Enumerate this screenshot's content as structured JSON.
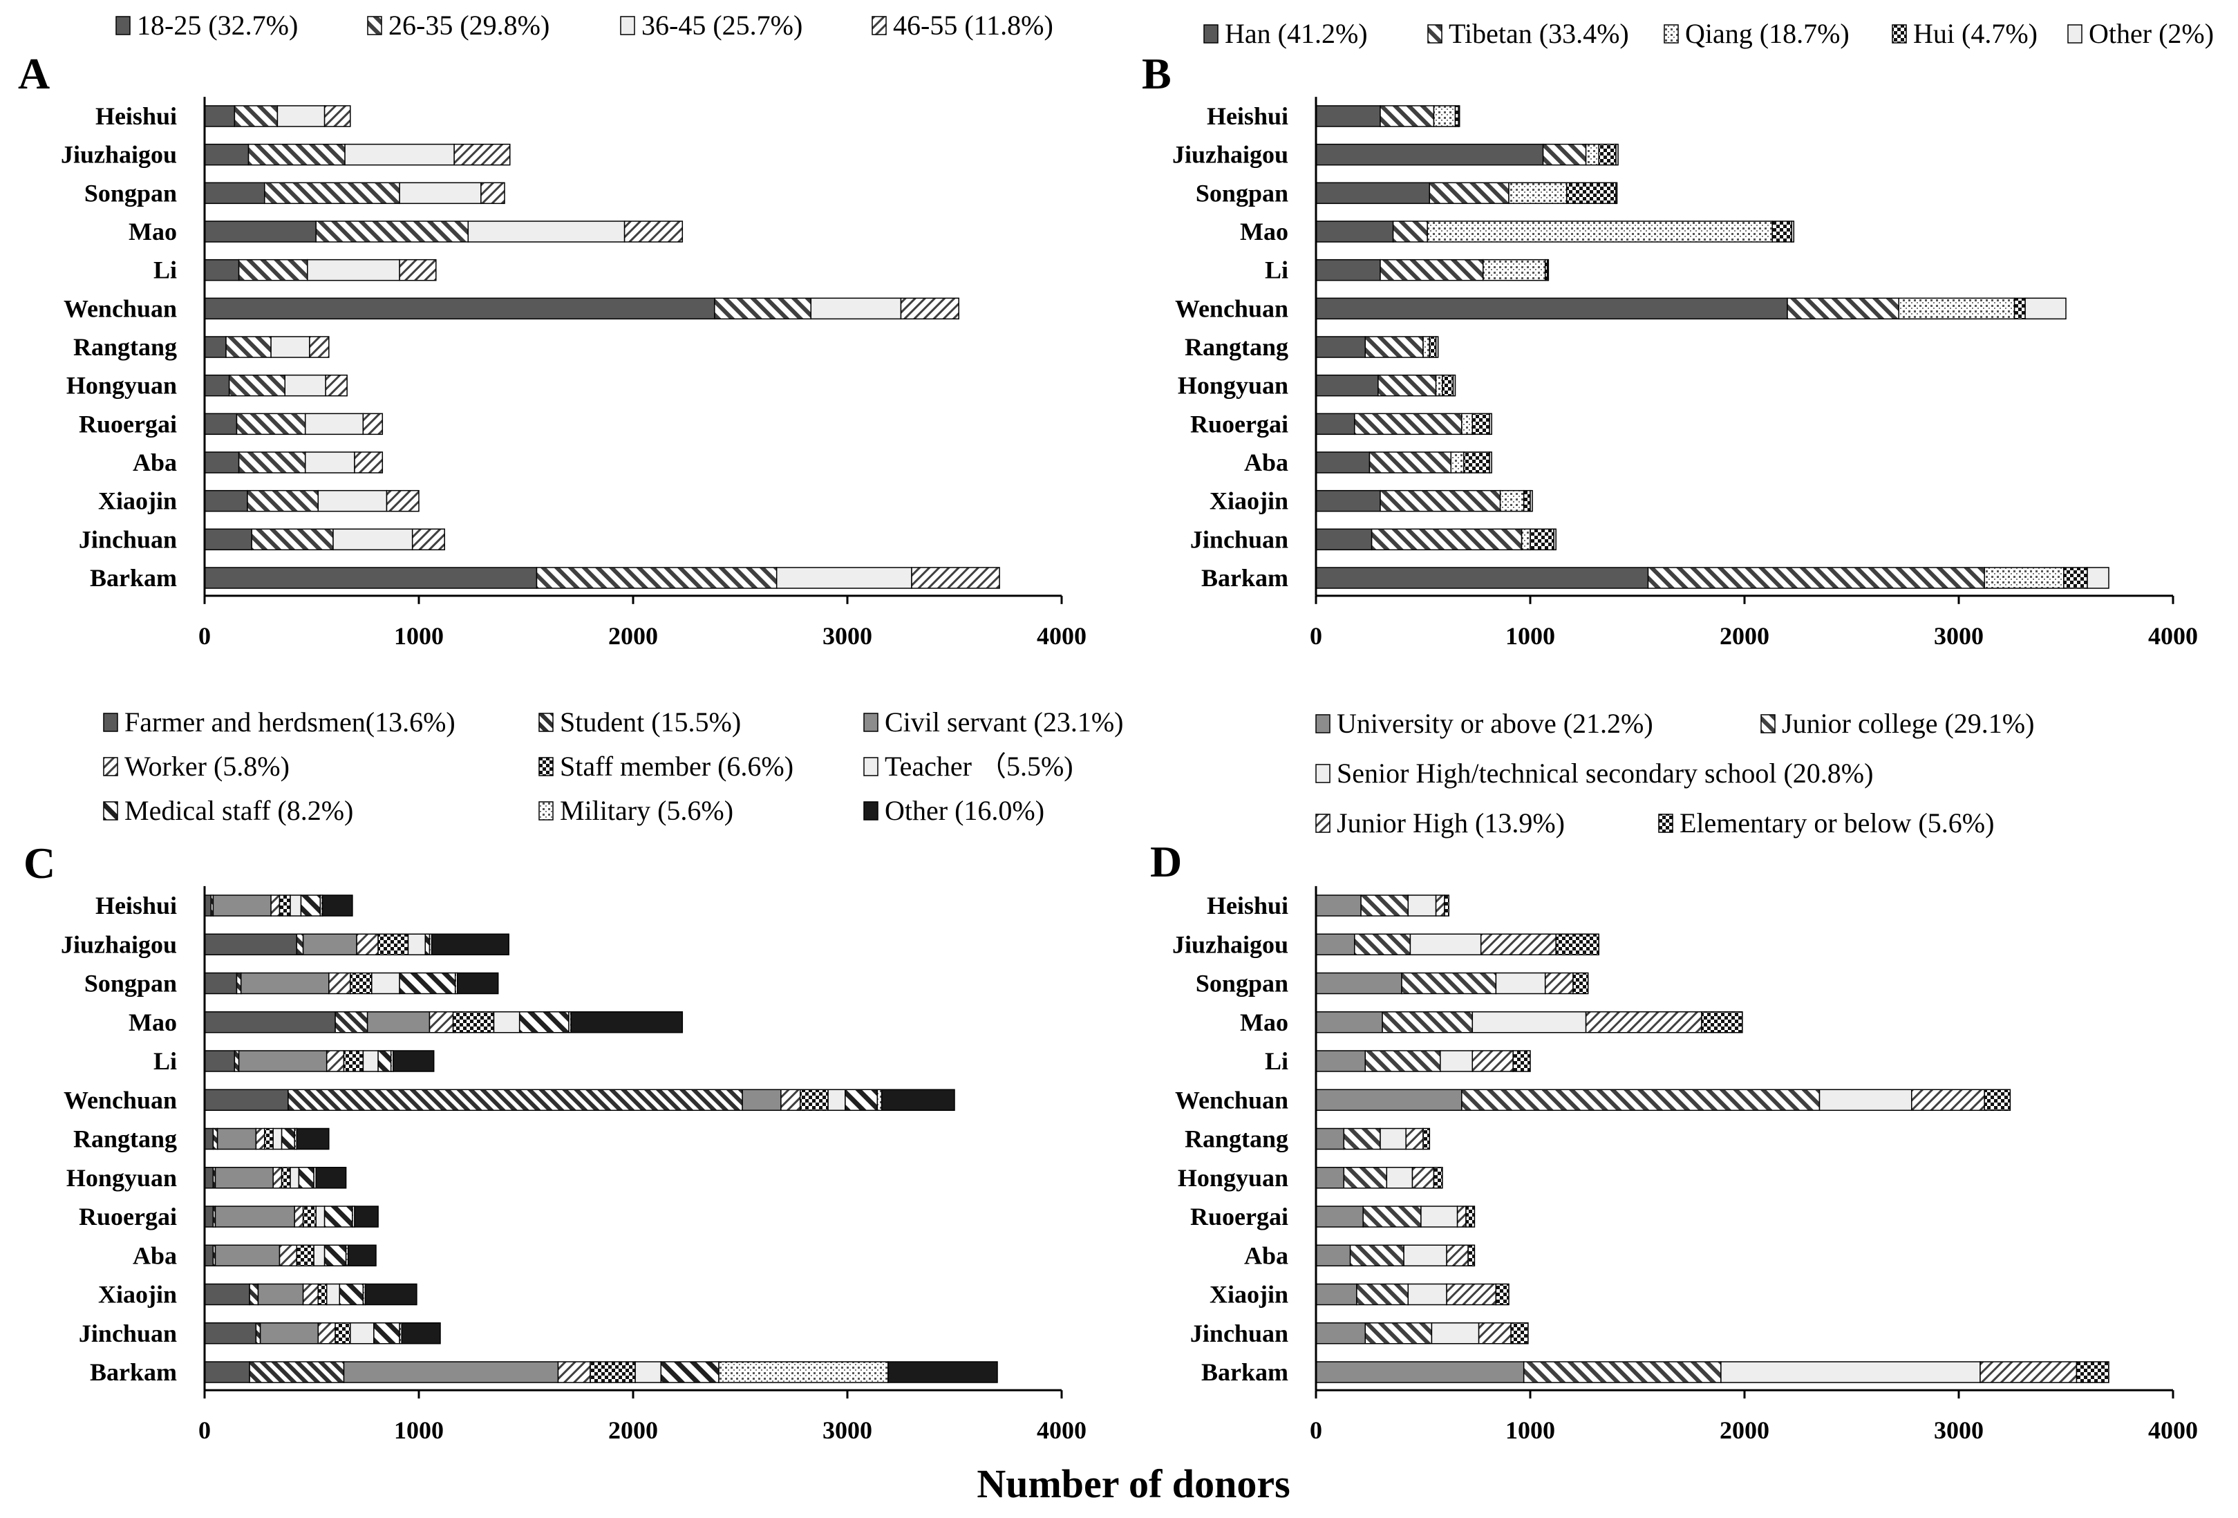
{
  "figure": {
    "xlabel": "Number of donors"
  },
  "chart_data": [
    {
      "panel": "A",
      "type": "bar",
      "orientation": "horizontal",
      "stacked": true,
      "title": "",
      "xlim": [
        0,
        4000
      ],
      "ticks": [
        0,
        1000,
        2000,
        3000,
        4000
      ],
      "categories": [
        "Heishui",
        "Jiuzhaigou",
        "Songpan",
        "Mao",
        "Li",
        "Wenchuan",
        "Rangtang",
        "Hongyuan",
        "Ruoergai",
        "Aba",
        "Xiaojin",
        "Jinchuan",
        "Barkam"
      ],
      "legend": [
        "18-25 (32.7%)",
        "26-35 (29.8%)",
        "36-45 (25.7%)",
        "46-55 (11.8%)"
      ],
      "series": [
        {
          "name": "18-25 (32.7%)",
          "pattern": "solid-dark",
          "values": [
            140,
            205,
            280,
            520,
            160,
            2380,
            100,
            115,
            150,
            160,
            200,
            220,
            1550
          ]
        },
        {
          "name": "26-35 (29.8%)",
          "pattern": "diag",
          "values": [
            200,
            450,
            630,
            710,
            320,
            450,
            210,
            260,
            320,
            310,
            330,
            380,
            1120
          ]
        },
        {
          "name": "36-45 (25.7%)",
          "pattern": "light",
          "values": [
            220,
            510,
            380,
            730,
            430,
            420,
            180,
            190,
            270,
            230,
            320,
            370,
            630
          ]
        },
        {
          "name": "46-55 (11.8%)",
          "pattern": "diag-back",
          "values": [
            120,
            260,
            110,
            270,
            170,
            270,
            90,
            100,
            90,
            130,
            150,
            150,
            410
          ]
        }
      ]
    },
    {
      "panel": "B",
      "type": "bar",
      "orientation": "horizontal",
      "stacked": true,
      "title": "",
      "xlim": [
        0,
        4000
      ],
      "ticks": [
        0,
        1000,
        2000,
        3000,
        4000
      ],
      "categories": [
        "Heishui",
        "Jiuzhaigou",
        "Songpan",
        "Mao",
        "Li",
        "Wenchuan",
        "Rangtang",
        "Hongyuan",
        "Ruoergai",
        "Aba",
        "Xiaojin",
        "Jinchuan",
        "Barkam"
      ],
      "legend": [
        "Han  (41.2%)",
        "Tibetan (33.4%)",
        "Qiang (18.7%)",
        "Hui (4.7%)",
        "Other (2%)"
      ],
      "series": [
        {
          "name": "Han  (41.2%)",
          "pattern": "solid-dark",
          "values": [
            300,
            1060,
            530,
            360,
            300,
            2200,
            230,
            290,
            180,
            250,
            300,
            260,
            1550
          ]
        },
        {
          "name": "Tibetan (33.4%)",
          "pattern": "diag",
          "values": [
            250,
            200,
            370,
            160,
            480,
            520,
            270,
            270,
            500,
            380,
            560,
            700,
            1570
          ]
        },
        {
          "name": "Qiang (18.7%)",
          "pattern": "dots",
          "values": [
            100,
            60,
            270,
            1610,
            290,
            540,
            30,
            30,
            50,
            60,
            110,
            40,
            370
          ]
        },
        {
          "name": "Hui (4.7%)",
          "pattern": "checker",
          "values": [
            15,
            80,
            230,
            90,
            10,
            50,
            30,
            50,
            80,
            120,
            30,
            110,
            110
          ]
        },
        {
          "name": "Other (2%)",
          "pattern": "light",
          "values": [
            5,
            10,
            5,
            10,
            5,
            190,
            10,
            10,
            10,
            10,
            10,
            10,
            100
          ]
        }
      ]
    },
    {
      "panel": "C",
      "type": "bar",
      "orientation": "horizontal",
      "stacked": true,
      "title": "",
      "xlim": [
        0,
        4000
      ],
      "ticks": [
        0,
        1000,
        2000,
        3000,
        4000
      ],
      "categories": [
        "Heishui",
        "Jiuzhaigou",
        "Songpan",
        "Mao",
        "Li",
        "Wenchuan",
        "Rangtang",
        "Hongyuan",
        "Ruoergai",
        "Aba",
        "Xiaojin",
        "Jinchuan",
        "Barkam"
      ],
      "legend": [
        "Farmer and herdsmen(13.6%)",
        "Student (15.5%)",
        "Civil servant (23.1%)",
        "Worker (5.8%)",
        "Staff member (6.6%)",
        "Teacher （5.5%)",
        "Medical staff (8.2%)",
        "Military (5.6%)",
        "Other (16.0%)"
      ],
      "series": [
        {
          "name": "Farmer and herdsmen(13.6%)",
          "pattern": "solid-dark",
          "values": [
            30,
            430,
            150,
            610,
            140,
            390,
            40,
            40,
            40,
            40,
            210,
            240,
            210
          ]
        },
        {
          "name": "Student (15.5%)",
          "pattern": "diag-bold",
          "values": [
            10,
            30,
            20,
            150,
            20,
            2120,
            20,
            10,
            10,
            10,
            40,
            20,
            440
          ]
        },
        {
          "name": "Civil servant (23.1%)",
          "pattern": "solid-mid",
          "values": [
            270,
            250,
            410,
            290,
            410,
            180,
            180,
            270,
            370,
            300,
            210,
            270,
            1000
          ]
        },
        {
          "name": "Worker (5.8%)",
          "pattern": "diag-back",
          "values": [
            40,
            100,
            100,
            110,
            80,
            90,
            40,
            40,
            40,
            80,
            70,
            80,
            150
          ]
        },
        {
          "name": "Staff member (6.6%)",
          "pattern": "checker",
          "values": [
            50,
            140,
            100,
            190,
            90,
            130,
            40,
            40,
            60,
            80,
            40,
            70,
            210
          ]
        },
        {
          "name": "Teacher （5.5%)",
          "pattern": "light",
          "values": [
            50,
            80,
            130,
            120,
            70,
            80,
            40,
            40,
            40,
            50,
            60,
            110,
            120
          ]
        },
        {
          "name": "Medical staff (8.2%)",
          "pattern": "diag-wide",
          "values": [
            90,
            20,
            260,
            230,
            60,
            150,
            60,
            70,
            130,
            100,
            110,
            120,
            270
          ]
        },
        {
          "name": "Military (5.6%)",
          "pattern": "dots",
          "values": [
            10,
            10,
            10,
            10,
            10,
            20,
            10,
            10,
            10,
            10,
            10,
            10,
            790
          ]
        },
        {
          "name": "Other (16.0%)",
          "pattern": "solid-black",
          "values": [
            140,
            360,
            190,
            520,
            190,
            340,
            150,
            140,
            110,
            130,
            240,
            180,
            510
          ]
        }
      ]
    },
    {
      "panel": "D",
      "type": "bar",
      "orientation": "horizontal",
      "stacked": true,
      "title": "",
      "xlim": [
        0,
        4000
      ],
      "ticks": [
        0,
        1000,
        2000,
        3000,
        4000
      ],
      "categories": [
        "Heishui",
        "Jiuzhaigou",
        "Songpan",
        "Mao",
        "Li",
        "Wenchuan",
        "Rangtang",
        "Hongyuan",
        "Ruoergai",
        "Aba",
        "Xiaojin",
        "Jinchuan",
        "Barkam"
      ],
      "legend": [
        "University or above (21.2%)",
        "Junior college (29.1%)",
        "Senior High/technical secondary school (20.8%)",
        "Junior High (13.9%)",
        "Elementary or below (5.6%)"
      ],
      "series": [
        {
          "name": "University or above (21.2%)",
          "pattern": "solid-mid",
          "values": [
            210,
            180,
            400,
            310,
            230,
            680,
            130,
            130,
            220,
            160,
            190,
            230,
            970
          ]
        },
        {
          "name": "Junior college (29.1%)",
          "pattern": "diag",
          "values": [
            220,
            260,
            440,
            420,
            350,
            1670,
            170,
            200,
            270,
            250,
            240,
            310,
            920
          ]
        },
        {
          "name": "Senior High/technical secondary school (20.8%)",
          "pattern": "light",
          "values": [
            130,
            330,
            230,
            530,
            150,
            430,
            120,
            120,
            170,
            200,
            180,
            220,
            1210
          ]
        },
        {
          "name": "Junior High (13.9%)",
          "pattern": "diag-back",
          "values": [
            40,
            350,
            130,
            540,
            190,
            340,
            80,
            100,
            40,
            100,
            230,
            150,
            450
          ]
        },
        {
          "name": "Elementary or below (5.6%)",
          "pattern": "checker",
          "values": [
            20,
            200,
            70,
            190,
            80,
            120,
            30,
            40,
            40,
            30,
            60,
            80,
            150
          ]
        }
      ]
    }
  ]
}
